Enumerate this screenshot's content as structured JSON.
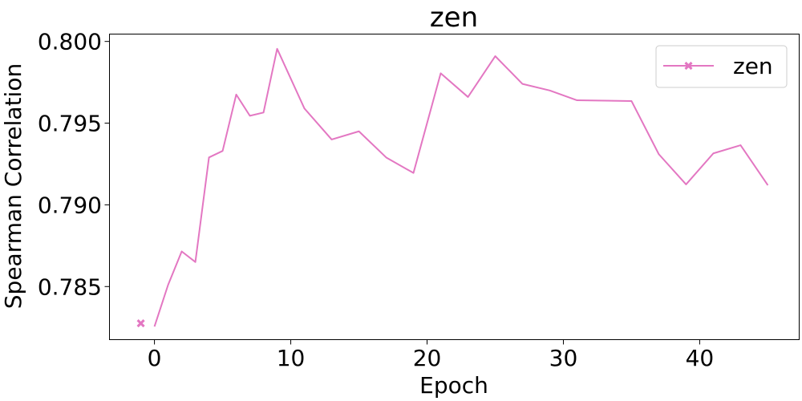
{
  "chart_data": {
    "type": "line",
    "title": "zen",
    "xlabel": "Epoch",
    "ylabel": "Spearman Correlation",
    "xlim": [
      -3.3,
      47.3
    ],
    "ylim": [
      0.78175,
      0.80045
    ],
    "xticks": [
      0,
      10,
      20,
      30,
      40
    ],
    "xtick_labels": [
      "0",
      "10",
      "20",
      "30",
      "40"
    ],
    "yticks": [
      0.785,
      0.79,
      0.795,
      0.8
    ],
    "ytick_labels": [
      "0.785",
      "0.790",
      "0.795",
      "0.800"
    ],
    "grid": false,
    "legend_position": "top-right",
    "series": [
      {
        "name": "zen",
        "color": "#e377c2",
        "marker": "x-filled",
        "marker_points": [
          {
            "x": -1,
            "y": 0.78275
          }
        ],
        "points": [
          {
            "x": 0,
            "y": 0.78255
          },
          {
            "x": 1,
            "y": 0.7851
          },
          {
            "x": 2,
            "y": 0.78715
          },
          {
            "x": 3,
            "y": 0.7865
          },
          {
            "x": 4,
            "y": 0.7929
          },
          {
            "x": 5,
            "y": 0.7933
          },
          {
            "x": 6,
            "y": 0.79675
          },
          {
            "x": 7,
            "y": 0.79545
          },
          {
            "x": 8,
            "y": 0.79565
          },
          {
            "x": 9,
            "y": 0.79955
          },
          {
            "x": 11,
            "y": 0.7959
          },
          {
            "x": 13,
            "y": 0.794
          },
          {
            "x": 15,
            "y": 0.7945
          },
          {
            "x": 17,
            "y": 0.7929
          },
          {
            "x": 19,
            "y": 0.79195
          },
          {
            "x": 21,
            "y": 0.79805
          },
          {
            "x": 23,
            "y": 0.7966
          },
          {
            "x": 25,
            "y": 0.7991
          },
          {
            "x": 27,
            "y": 0.7974
          },
          {
            "x": 29,
            "y": 0.797
          },
          {
            "x": 31,
            "y": 0.7964
          },
          {
            "x": 35,
            "y": 0.79635
          },
          {
            "x": 37,
            "y": 0.7931
          },
          {
            "x": 39,
            "y": 0.79125
          },
          {
            "x": 41,
            "y": 0.79315
          },
          {
            "x": 43,
            "y": 0.79365
          },
          {
            "x": 45,
            "y": 0.7912
          }
        ]
      }
    ]
  }
}
